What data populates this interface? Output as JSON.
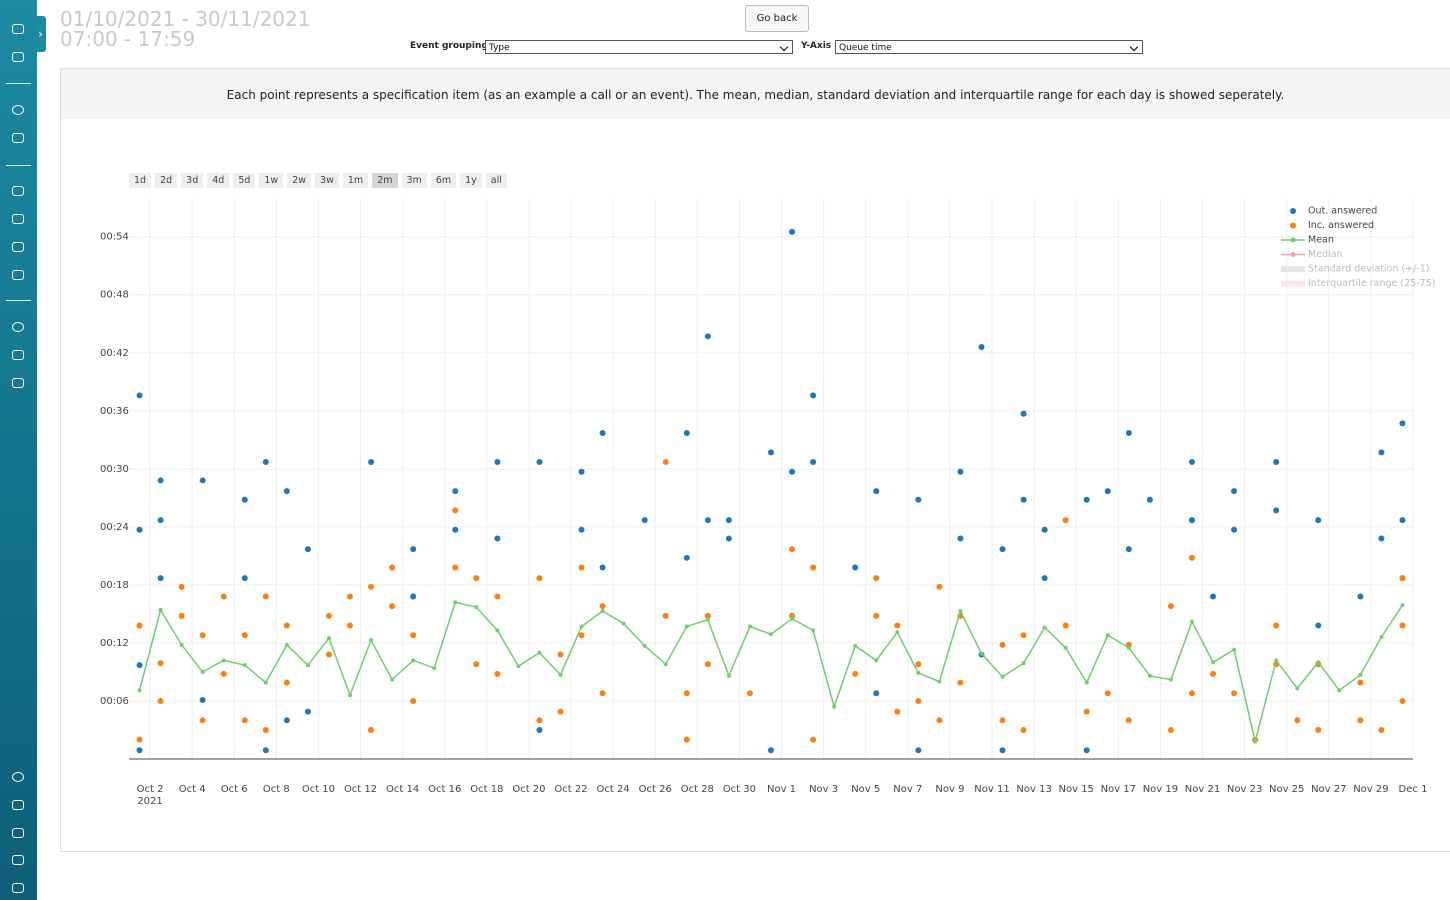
{
  "header": {
    "date_range": "01/10/2021 - 30/11/2021",
    "time_range": "07:00 - 17:59"
  },
  "controls": {
    "go_back": "Go back",
    "event_grouping_label": "Event grouping",
    "event_grouping_value": "Type",
    "y_axis_label": "Y-Axis",
    "y_axis_value": "Queue time"
  },
  "description": "Each point represents a specification item (as an example a call or an event). The mean, median, standard deviation and interquartile range for each day is showed seperately.",
  "range_buttons": [
    "1d",
    "2d",
    "3d",
    "4d",
    "5d",
    "1w",
    "2w",
    "3w",
    "1m",
    "2m",
    "3m",
    "6m",
    "1y",
    "all"
  ],
  "active_range": "2m",
  "chart_data": {
    "type": "scatter",
    "grid": true,
    "legend": "top-right",
    "xlim": [
      "2021-10-01",
      "2021-12-01"
    ],
    "xticks": [
      {
        "value": "2021-10-02",
        "label": "Oct 2"
      },
      {
        "value": "2021-10-04",
        "label": "Oct 4"
      },
      {
        "value": "2021-10-06",
        "label": "Oct 6"
      },
      {
        "value": "2021-10-08",
        "label": "Oct 8"
      },
      {
        "value": "2021-10-10",
        "label": "Oct 10"
      },
      {
        "value": "2021-10-12",
        "label": "Oct 12"
      },
      {
        "value": "2021-10-14",
        "label": "Oct 14"
      },
      {
        "value": "2021-10-16",
        "label": "Oct 16"
      },
      {
        "value": "2021-10-18",
        "label": "Oct 18"
      },
      {
        "value": "2021-10-20",
        "label": "Oct 20"
      },
      {
        "value": "2021-10-22",
        "label": "Oct 22"
      },
      {
        "value": "2021-10-24",
        "label": "Oct 24"
      },
      {
        "value": "2021-10-26",
        "label": "Oct 26"
      },
      {
        "value": "2021-10-28",
        "label": "Oct 28"
      },
      {
        "value": "2021-10-30",
        "label": "Oct 30"
      },
      {
        "value": "2021-11-01",
        "label": "Nov 1"
      },
      {
        "value": "2021-11-03",
        "label": "Nov 3"
      },
      {
        "value": "2021-11-05",
        "label": "Nov 5"
      },
      {
        "value": "2021-11-07",
        "label": "Nov 7"
      },
      {
        "value": "2021-11-09",
        "label": "Nov 9"
      },
      {
        "value": "2021-11-11",
        "label": "Nov 11"
      },
      {
        "value": "2021-11-13",
        "label": "Nov 13"
      },
      {
        "value": "2021-11-15",
        "label": "Nov 15"
      },
      {
        "value": "2021-11-17",
        "label": "Nov 17"
      },
      {
        "value": "2021-11-19",
        "label": "Nov 19"
      },
      {
        "value": "2021-11-21",
        "label": "Nov 21"
      },
      {
        "value": "2021-11-23",
        "label": "Nov 23"
      },
      {
        "value": "2021-11-25",
        "label": "Nov 25"
      },
      {
        "value": "2021-11-27",
        "label": "Nov 27"
      },
      {
        "value": "2021-11-29",
        "label": "Nov 29"
      },
      {
        "value": "2021-12-01",
        "label": "Dec 1"
      }
    ],
    "year_label": "2021",
    "ylim": [
      0,
      58
    ],
    "yticks": [
      {
        "value": 6,
        "label": "00:06"
      },
      {
        "value": 12,
        "label": "00:12"
      },
      {
        "value": 18,
        "label": "00:18"
      },
      {
        "value": 24,
        "label": "00:24"
      },
      {
        "value": 30,
        "label": "00:30"
      },
      {
        "value": 36,
        "label": "00:36"
      },
      {
        "value": 42,
        "label": "00:42"
      },
      {
        "value": 48,
        "label": "00:48"
      },
      {
        "value": 54,
        "label": "00:54"
      }
    ],
    "series": [
      {
        "name": "Out. answered",
        "color": "#1f77b4",
        "mode": "markers",
        "x": [
          "2021-10-01",
          "2021-10-01",
          "2021-10-01",
          "2021-10-01",
          "2021-10-02",
          "2021-10-02",
          "2021-10-02",
          "2021-10-04",
          "2021-10-04",
          "2021-10-06",
          "2021-10-06",
          "2021-10-07",
          "2021-10-07",
          "2021-10-08",
          "2021-10-08",
          "2021-10-09",
          "2021-10-09",
          "2021-10-12",
          "2021-10-12",
          "2021-10-14",
          "2021-10-14",
          "2021-10-16",
          "2021-10-16",
          "2021-10-18",
          "2021-10-18",
          "2021-10-20",
          "2021-10-20",
          "2021-10-22",
          "2021-10-22",
          "2021-10-23",
          "2021-10-23",
          "2021-10-25",
          "2021-10-27",
          "2021-10-27",
          "2021-10-28",
          "2021-10-28",
          "2021-10-29",
          "2021-10-29",
          "2021-10-31",
          "2021-10-31",
          "2021-11-01",
          "2021-11-01",
          "2021-11-02",
          "2021-11-02",
          "2021-11-04",
          "2021-11-05",
          "2021-11-05",
          "2021-11-07",
          "2021-11-07",
          "2021-11-09",
          "2021-11-09",
          "2021-11-10",
          "2021-11-10",
          "2021-11-11",
          "2021-11-11",
          "2021-11-12",
          "2021-11-12",
          "2021-11-13",
          "2021-11-13",
          "2021-11-15",
          "2021-11-15",
          "2021-11-16",
          "2021-11-17",
          "2021-11-17",
          "2021-11-18",
          "2021-11-20",
          "2021-11-20",
          "2021-11-21",
          "2021-11-22",
          "2021-11-22",
          "2021-11-24",
          "2021-11-24",
          "2021-11-26",
          "2021-11-26",
          "2021-11-28",
          "2021-11-29",
          "2021-11-29",
          "2021-11-30",
          "2021-11-30",
          "2021-11-30"
        ],
        "values": [
          37.6,
          23.7,
          9.7,
          0.9,
          28.8,
          24.7,
          18.7,
          28.8,
          6.1,
          26.8,
          18.7,
          30.7,
          0.9,
          27.7,
          4.0,
          21.7,
          4.9,
          30.7,
          3.0,
          21.7,
          16.8,
          27.7,
          23.7,
          30.7,
          22.8,
          30.7,
          3.0,
          29.7,
          23.7,
          33.7,
          19.8,
          24.7,
          33.7,
          20.8,
          43.7,
          24.7,
          24.7,
          22.8,
          31.7,
          0.9,
          54.5,
          29.7,
          37.6,
          30.7,
          19.8,
          27.7,
          6.8,
          26.8,
          0.9,
          29.7,
          22.8,
          42.6,
          10.8,
          21.7,
          0.9,
          35.7,
          26.8,
          23.7,
          18.7,
          26.8,
          0.9,
          27.7,
          33.7,
          21.7,
          26.8,
          30.7,
          24.7,
          16.8,
          27.7,
          23.7,
          30.7,
          25.7,
          24.7,
          13.8,
          16.8,
          31.7,
          22.8,
          34.7,
          24.7,
          18.7
        ]
      },
      {
        "name": "Inc. answered",
        "color": "#ff7f0e",
        "mode": "markers",
        "x": [
          "2021-10-01",
          "2021-10-01",
          "2021-10-02",
          "2021-10-02",
          "2021-10-03",
          "2021-10-03",
          "2021-10-04",
          "2021-10-04",
          "2021-10-05",
          "2021-10-05",
          "2021-10-06",
          "2021-10-06",
          "2021-10-07",
          "2021-10-07",
          "2021-10-08",
          "2021-10-08",
          "2021-10-10",
          "2021-10-10",
          "2021-10-11",
          "2021-10-11",
          "2021-10-12",
          "2021-10-12",
          "2021-10-13",
          "2021-10-13",
          "2021-10-14",
          "2021-10-14",
          "2021-10-16",
          "2021-10-16",
          "2021-10-17",
          "2021-10-17",
          "2021-10-18",
          "2021-10-18",
          "2021-10-20",
          "2021-10-20",
          "2021-10-21",
          "2021-10-21",
          "2021-10-22",
          "2021-10-22",
          "2021-10-23",
          "2021-10-23",
          "2021-10-26",
          "2021-10-26",
          "2021-10-27",
          "2021-10-27",
          "2021-10-28",
          "2021-10-28",
          "2021-10-30",
          "2021-11-01",
          "2021-11-01",
          "2021-11-02",
          "2021-11-02",
          "2021-11-04",
          "2021-11-05",
          "2021-11-05",
          "2021-11-06",
          "2021-11-06",
          "2021-11-07",
          "2021-11-07",
          "2021-11-08",
          "2021-11-08",
          "2021-11-09",
          "2021-11-09",
          "2021-11-11",
          "2021-11-11",
          "2021-11-12",
          "2021-11-12",
          "2021-11-14",
          "2021-11-14",
          "2021-11-15",
          "2021-11-16",
          "2021-11-17",
          "2021-11-17",
          "2021-11-19",
          "2021-11-19",
          "2021-11-20",
          "2021-11-20",
          "2021-11-21",
          "2021-11-22",
          "2021-11-23",
          "2021-11-24",
          "2021-11-24",
          "2021-11-25",
          "2021-11-26",
          "2021-11-26",
          "2021-11-28",
          "2021-11-28",
          "2021-11-29",
          "2021-11-30",
          "2021-11-30",
          "2021-11-30"
        ],
        "values": [
          13.8,
          2.0,
          9.9,
          6.0,
          17.8,
          14.8,
          12.8,
          4.0,
          16.8,
          8.8,
          4.0,
          12.8,
          16.8,
          3.0,
          13.8,
          7.9,
          14.8,
          10.8,
          16.8,
          13.8,
          17.8,
          3.0,
          19.8,
          15.8,
          12.8,
          6.0,
          19.8,
          25.7,
          18.7,
          9.8,
          16.8,
          8.8,
          18.7,
          4.0,
          10.8,
          4.9,
          19.8,
          12.8,
          15.8,
          6.8,
          30.7,
          14.8,
          6.8,
          2.0,
          14.8,
          9.8,
          6.8,
          21.7,
          14.8,
          19.8,
          2.0,
          8.8,
          18.7,
          14.8,
          13.8,
          4.9,
          9.8,
          6.0,
          17.8,
          4.0,
          14.8,
          7.9,
          11.8,
          4.0,
          12.8,
          3.0,
          24.7,
          13.8,
          4.9,
          6.8,
          11.8,
          4.0,
          15.8,
          3.0,
          20.8,
          6.8,
          8.8,
          6.8,
          2.0,
          13.8,
          9.8,
          4.0,
          9.8,
          3.0,
          7.9,
          4.0,
          3.0,
          18.7,
          13.8,
          6.0
        ]
      },
      {
        "name": "Mean",
        "color": "#6fcf6a",
        "mode": "lines+markers",
        "x": [
          "2021-10-01",
          "2021-10-02",
          "2021-10-03",
          "2021-10-04",
          "2021-10-05",
          "2021-10-06",
          "2021-10-07",
          "2021-10-08",
          "2021-10-09",
          "2021-10-10",
          "2021-10-11",
          "2021-10-12",
          "2021-10-13",
          "2021-10-14",
          "2021-10-15",
          "2021-10-16",
          "2021-10-17",
          "2021-10-18",
          "2021-10-19",
          "2021-10-20",
          "2021-10-21",
          "2021-10-22",
          "2021-10-23",
          "2021-10-24",
          "2021-10-25",
          "2021-10-26",
          "2021-10-27",
          "2021-10-28",
          "2021-10-29",
          "2021-10-30",
          "2021-10-31",
          "2021-11-01",
          "2021-11-02",
          "2021-11-03",
          "2021-11-04",
          "2021-11-05",
          "2021-11-06",
          "2021-11-07",
          "2021-11-08",
          "2021-11-09",
          "2021-11-10",
          "2021-11-11",
          "2021-11-12",
          "2021-11-13",
          "2021-11-14",
          "2021-11-15",
          "2021-11-16",
          "2021-11-17",
          "2021-11-18",
          "2021-11-19",
          "2021-11-20",
          "2021-11-21",
          "2021-11-22",
          "2021-11-23",
          "2021-11-24",
          "2021-11-25",
          "2021-11-26",
          "2021-11-27",
          "2021-11-28",
          "2021-11-29",
          "2021-11-30"
        ],
        "values": [
          7.1,
          15.4,
          11.8,
          9.0,
          10.2,
          9.7,
          7.9,
          11.8,
          9.7,
          12.5,
          6.6,
          12.3,
          8.2,
          10.2,
          9.4,
          16.2,
          15.7,
          13.3,
          9.6,
          11.0,
          8.7,
          13.7,
          15.3,
          14.0,
          11.7,
          9.8,
          13.7,
          14.4,
          8.6,
          13.7,
          12.9,
          14.5,
          13.3,
          5.4,
          11.7,
          10.2,
          13.1,
          8.9,
          8.0,
          15.3,
          10.9,
          8.5,
          9.9,
          13.6,
          11.5,
          7.9,
          12.8,
          11.5,
          8.6,
          8.2,
          14.2,
          10.0,
          11.3,
          1.8,
          10.2,
          7.3,
          10.0,
          7.1,
          8.7,
          12.6,
          15.9
        ]
      }
    ],
    "legend_hidden": [
      {
        "name": "Median",
        "color": "#f4a0a8",
        "style": "line"
      },
      {
        "name": "Standard deviation (+/-1)",
        "color": "#e6e6e6",
        "style": "band"
      },
      {
        "name": "Interquartile range (25-75)",
        "color": "#fde4e6",
        "style": "band"
      }
    ]
  }
}
